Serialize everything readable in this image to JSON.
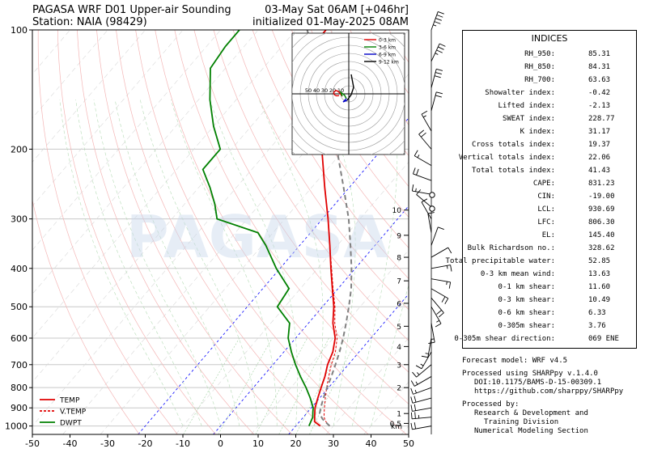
{
  "header": {
    "title_line1": "PAGASA WRF D01 Upper-air Sounding",
    "title_line2": "Station: NAIA (98429)",
    "valid_line1": "03-May Sat 06AM [+046hr]",
    "valid_line2": "initialized 01-May-2025 08AM"
  },
  "watermark": "PAGASA",
  "chart_data": {
    "type": "line",
    "subtype": "skew-t log-p",
    "x_ticks": [
      -50,
      -40,
      -30,
      -20,
      -10,
      0,
      10,
      20,
      30,
      40,
      50
    ],
    "xlim": [
      -50,
      50
    ],
    "y_ticks": [
      100,
      200,
      300,
      400,
      500,
      600,
      700,
      800,
      900,
      1000
    ],
    "ylim": [
      1050,
      100
    ],
    "y_scale": "log",
    "km_ticks": [
      {
        "label": "0.5",
        "p": 985
      },
      {
        "label": "1",
        "p": 930
      },
      {
        "label": "2",
        "p": 800
      },
      {
        "label": "3",
        "p": 700
      },
      {
        "label": "4",
        "p": 630
      },
      {
        "label": "5",
        "p": 560
      },
      {
        "label": "6",
        "p": 490
      },
      {
        "label": "7",
        "p": 430
      },
      {
        "label": "8",
        "p": 375
      },
      {
        "label": "9",
        "p": 330
      },
      {
        "label": "10",
        "p": 285
      }
    ],
    "km_unit": "km",
    "legend": {
      "position": "lower-left",
      "entries": [
        {
          "label": "TEMP",
          "color": "#e00000",
          "style": "solid"
        },
        {
          "label": "V.TEMP",
          "color": "#e00000",
          "style": "dashed"
        },
        {
          "label": "DWPT",
          "color": "#008000",
          "style": "solid"
        }
      ]
    },
    "series": [
      {
        "name": "TEMP",
        "color": "#e00000",
        "points": [
          [
            1000,
            26.5
          ],
          [
            975,
            24
          ],
          [
            950,
            23
          ],
          [
            925,
            22
          ],
          [
            900,
            21
          ],
          [
            850,
            19.5
          ],
          [
            800,
            18
          ],
          [
            750,
            16.5
          ],
          [
            700,
            14.5
          ],
          [
            650,
            13
          ],
          [
            600,
            10.5
          ],
          [
            550,
            6.5
          ],
          [
            500,
            3
          ],
          [
            450,
            -1.5
          ],
          [
            400,
            -6.5
          ],
          [
            350,
            -12
          ],
          [
            300,
            -18.5
          ],
          [
            250,
            -26.5
          ],
          [
            200,
            -36
          ],
          [
            175,
            -43
          ],
          [
            150,
            -50
          ],
          [
            125,
            -58
          ],
          [
            110,
            -62
          ],
          [
            100,
            -62
          ]
        ]
      },
      {
        "name": "V.TEMP",
        "color": "#e00000",
        "points": [
          [
            1000,
            29
          ],
          [
            975,
            27
          ],
          [
            950,
            25.5
          ],
          [
            925,
            24.5
          ],
          [
            900,
            23.5
          ],
          [
            850,
            21.5
          ],
          [
            800,
            19.5
          ],
          [
            750,
            17.5
          ],
          [
            700,
            15.5
          ],
          [
            650,
            13.7
          ],
          [
            600,
            11
          ],
          [
            550,
            7
          ],
          [
            500,
            3.3
          ],
          [
            450,
            -1.3
          ],
          [
            400,
            -6.3
          ],
          [
            350,
            -12
          ],
          [
            300,
            -18.5
          ]
        ]
      },
      {
        "name": "DWPT",
        "color": "#008000",
        "points": [
          [
            1000,
            23.5
          ],
          [
            975,
            23
          ],
          [
            950,
            22.5
          ],
          [
            925,
            21.5
          ],
          [
            900,
            20.5
          ],
          [
            850,
            17.5
          ],
          [
            800,
            14
          ],
          [
            750,
            10
          ],
          [
            700,
            6
          ],
          [
            650,
            2
          ],
          [
            600,
            -2
          ],
          [
            550,
            -5
          ],
          [
            500,
            -12
          ],
          [
            450,
            -13
          ],
          [
            400,
            -21
          ],
          [
            350,
            -29
          ],
          [
            325,
            -34
          ],
          [
            300,
            -48
          ],
          [
            275,
            -52
          ],
          [
            250,
            -57
          ],
          [
            225,
            -63
          ],
          [
            200,
            -63
          ],
          [
            175,
            -70
          ],
          [
            150,
            -77
          ],
          [
            125,
            -84
          ],
          [
            110,
            -85
          ],
          [
            100,
            -85
          ]
        ]
      },
      {
        "name": "parcel",
        "color": "#808080",
        "style": "dashed",
        "points": [
          [
            1000,
            29
          ],
          [
            960,
            25.5
          ],
          [
            930,
            23.5
          ],
          [
            900,
            22.5
          ],
          [
            850,
            21
          ],
          [
            800,
            19.6
          ],
          [
            750,
            18.2
          ],
          [
            700,
            16.6
          ],
          [
            650,
            14.8
          ],
          [
            600,
            12.6
          ],
          [
            550,
            10
          ],
          [
            500,
            7
          ],
          [
            450,
            3.5
          ],
          [
            400,
            -1
          ],
          [
            350,
            -6.5
          ],
          [
            300,
            -13
          ],
          [
            250,
            -21.5
          ],
          [
            200,
            -32
          ],
          [
            175,
            -39
          ],
          [
            150,
            -46
          ],
          [
            145,
            -47.5
          ],
          [
            125,
            -56
          ],
          [
            110,
            -62
          ],
          [
            100,
            -67
          ]
        ]
      }
    ],
    "hodograph": {
      "legend": [
        {
          "label": "0-3 km",
          "color": "#e00000"
        },
        {
          "label": "3-6 km",
          "color": "#008000"
        },
        {
          "label": "6-9 km",
          "color": "#0000c8"
        },
        {
          "label": "9-12 km",
          "color": "#000000"
        }
      ],
      "ring_labels": [
        "50",
        "40",
        "30",
        "20",
        "10"
      ]
    }
  },
  "indices": {
    "heading": "INDICES",
    "rows": [
      {
        "label": "RH_950:",
        "value": "85.31"
      },
      {
        "label": "RH_850:",
        "value": "84.31"
      },
      {
        "label": "RH_700:",
        "value": "63.63"
      },
      {
        "label": "Showalter index:",
        "value": "-0.42"
      },
      {
        "label": "Lifted index:",
        "value": "-2.13"
      },
      {
        "label": "SWEAT index:",
        "value": "228.77"
      },
      {
        "label": "K index:",
        "value": "31.17"
      },
      {
        "label": "Cross totals index:",
        "value": "19.37"
      },
      {
        "label": "Vertical totals index:",
        "value": "22.06"
      },
      {
        "label": "Total totals index:",
        "value": "41.43"
      },
      {
        "label": "CAPE:",
        "value": "831.23"
      },
      {
        "label": "CIN:",
        "value": "-19.00"
      },
      {
        "label": "LCL:",
        "value": "930.69"
      },
      {
        "label": "LFC:",
        "value": "806.30"
      },
      {
        "label": "EL:",
        "value": "145.40"
      },
      {
        "label": "Bulk Richardson no.:",
        "value": "328.62"
      },
      {
        "label": "Total precipitable water:",
        "value": "52.85"
      },
      {
        "label": "0-3 km mean wind:",
        "value": "13.63"
      },
      {
        "label": "0-1 km shear:",
        "value": "11.60"
      },
      {
        "label": "0-3 km shear:",
        "value": "10.49"
      },
      {
        "label": "0-6 km shear:",
        "value": "6.33"
      },
      {
        "label": "0-305m shear:",
        "value": "3.76"
      },
      {
        "label": "0-305m shear direction:",
        "value": "069 ENE"
      }
    ]
  },
  "footer": {
    "model": "Forecast model: WRF v4.5",
    "processed_using": "Processed using SHARPpy v.1.4.0",
    "doi": "DOI:10.1175/BAMS-D-15-00309.1",
    "url": "https://github.com/sharppy/SHARPpy",
    "processed_by": "Processed by:",
    "org_line1": "Research & Development and",
    "org_line2": "Training Division",
    "org_line3": "Numerical Modeling Section"
  }
}
